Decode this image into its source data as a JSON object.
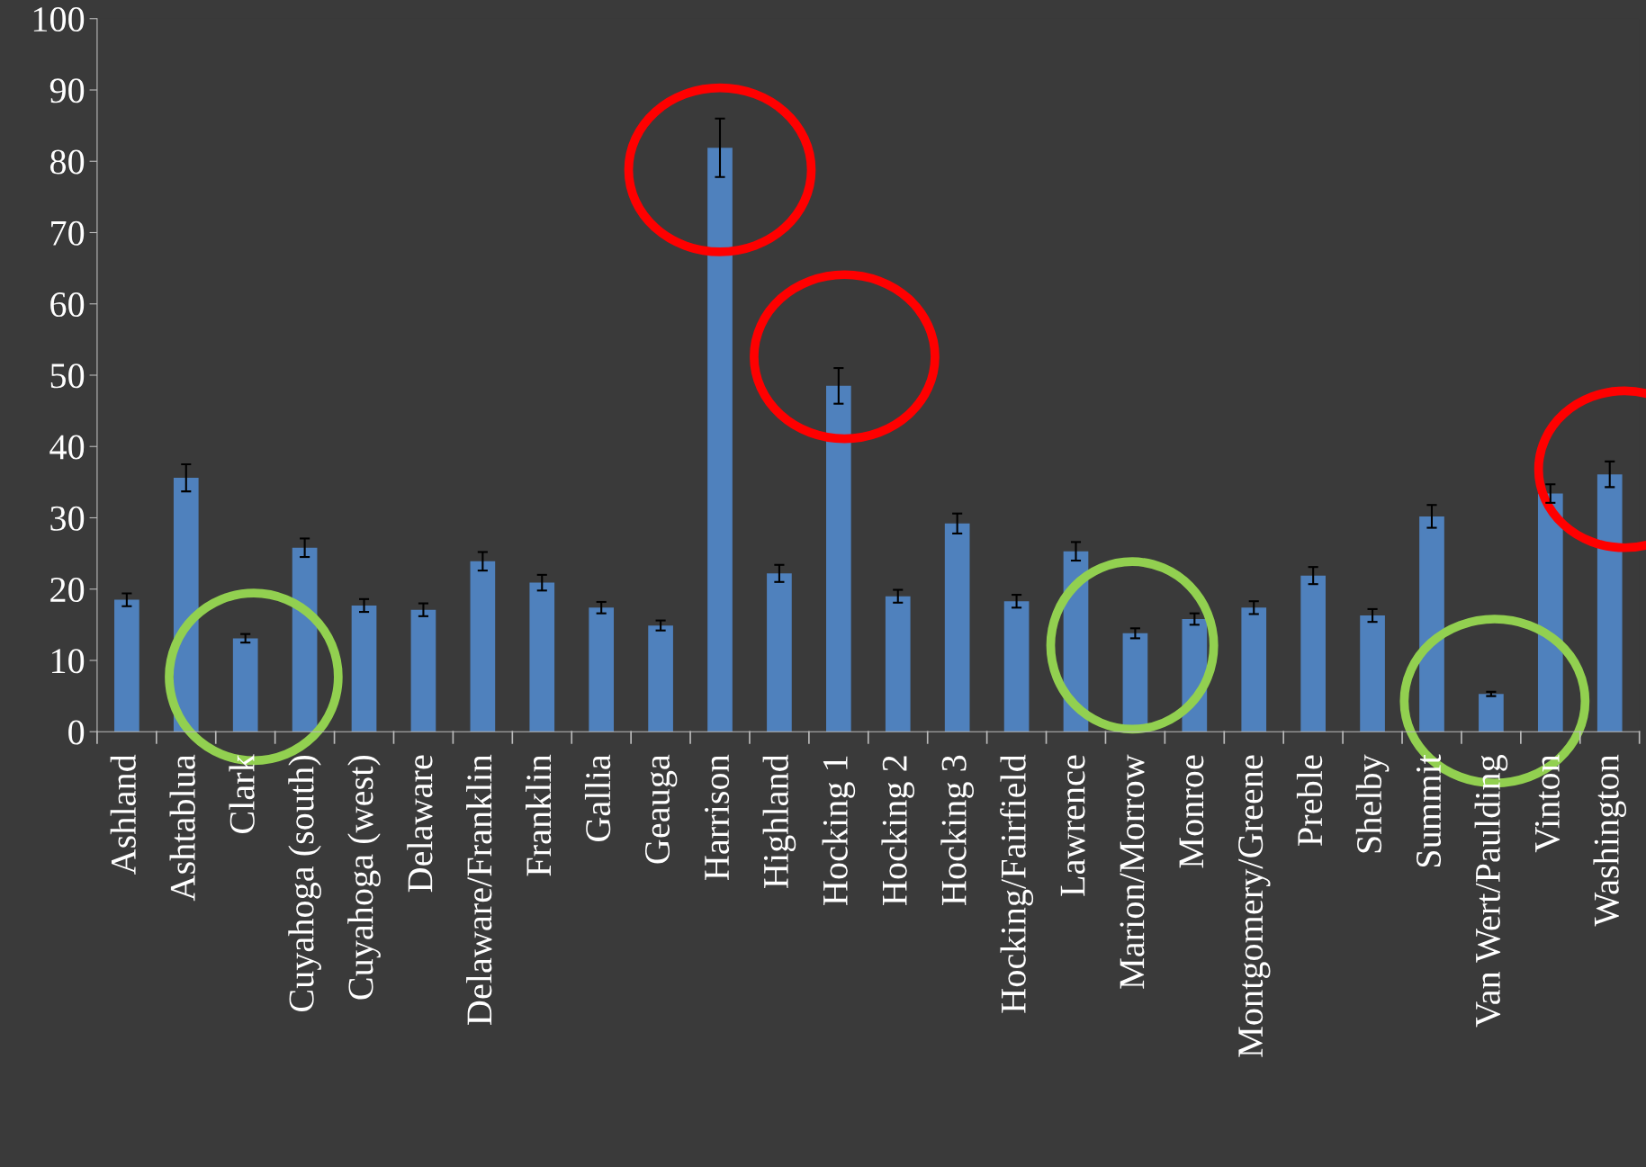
{
  "chart_data": {
    "type": "bar",
    "categories": [
      "Ashland",
      "Ashtablua",
      "Clark",
      "Cuyahoga (south)",
      "Cuyahoga (west)",
      "Delaware",
      "Delaware/Franklin",
      "Franklin",
      "Gallia",
      "Geauga",
      "Harrison",
      "Highland",
      "Hocking 1",
      "Hocking 2",
      "Hocking 3",
      "Hocking/Fairfield",
      "Lawrence",
      "Marion/Morrow",
      "Monroe",
      "Montgomery/Greene",
      "Preble",
      "Shelby",
      "Summit",
      "Van Wert/Paulding",
      "Vinton",
      "Washington"
    ],
    "values": [
      18.5,
      35.6,
      13.1,
      25.8,
      17.7,
      17.1,
      23.9,
      20.9,
      17.4,
      14.9,
      81.9,
      22.2,
      48.5,
      19.0,
      29.2,
      18.3,
      25.3,
      13.8,
      15.8,
      17.4,
      21.9,
      16.3,
      30.2,
      5.3,
      33.4,
      36.1
    ],
    "errors": [
      0.9,
      1.9,
      0.6,
      1.3,
      0.9,
      0.9,
      1.3,
      1.1,
      0.8,
      0.7,
      4.1,
      1.2,
      2.5,
      0.9,
      1.4,
      0.9,
      1.3,
      0.7,
      0.8,
      0.9,
      1.2,
      0.9,
      1.6,
      0.3,
      1.3,
      1.8
    ],
    "color": "#4f81bd",
    "ylim": [
      0,
      100
    ],
    "yticks": [
      0,
      10,
      20,
      30,
      40,
      50,
      60,
      70,
      80,
      90,
      100
    ],
    "grid": false
  }
}
